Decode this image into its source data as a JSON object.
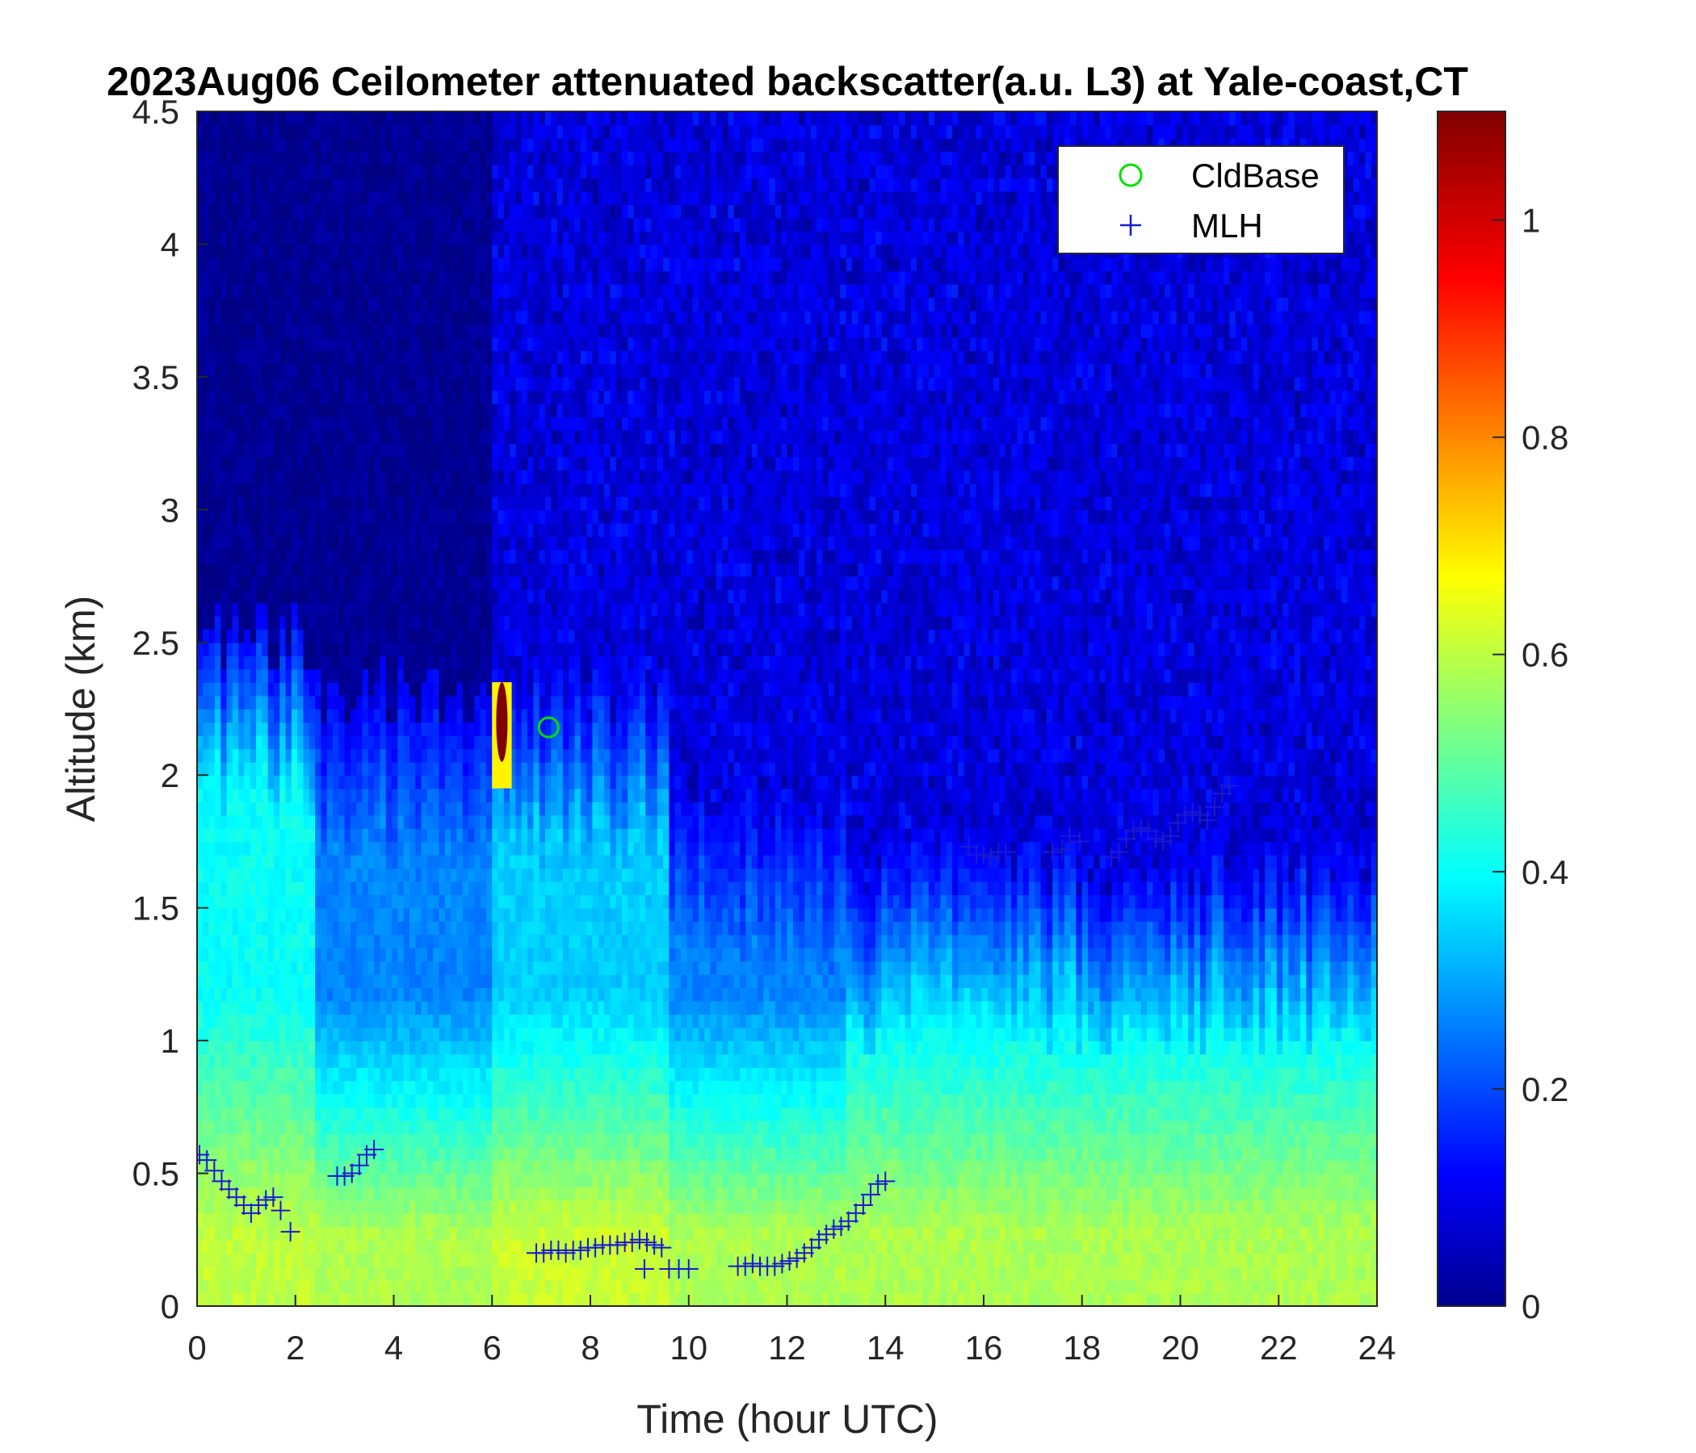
{
  "chart_data": {
    "type": "heatmap",
    "title": "2023Aug06 Ceilometer attenuated backscatter(a.u. L3) at Yale-coast,CT",
    "xlabel": "Time (hour UTC)",
    "ylabel": "Altitude (km)",
    "xlim": [
      0,
      24
    ],
    "ylim": [
      0,
      4.5
    ],
    "x_ticks": [
      "0",
      "2",
      "4",
      "6",
      "8",
      "10",
      "12",
      "14",
      "16",
      "18",
      "20",
      "22",
      "24"
    ],
    "y_ticks": [
      "0",
      "0.5",
      "1",
      "1.5",
      "2",
      "2.5",
      "3",
      "3.5",
      "4",
      "4.5"
    ],
    "colorbar": {
      "colormap": "jet",
      "clim": [
        0,
        1.1
      ],
      "ticks": [
        "0",
        "0.2",
        "0.4",
        "0.6",
        "0.8",
        "1"
      ]
    },
    "legend": {
      "position": "top-right",
      "entries": [
        "CldBase",
        "MLH"
      ]
    },
    "series": [
      {
        "name": "CldBase",
        "marker": "circle",
        "color": "#00e000",
        "points": [
          [
            7.15,
            2.18
          ]
        ]
      },
      {
        "name": "MLH",
        "marker": "plus",
        "color": "#1a1ad0",
        "points": [
          [
            0.05,
            0.57
          ],
          [
            0.2,
            0.55
          ],
          [
            0.35,
            0.51
          ],
          [
            0.5,
            0.47
          ],
          [
            0.65,
            0.44
          ],
          [
            0.8,
            0.41
          ],
          [
            0.95,
            0.38
          ],
          [
            1.1,
            0.35
          ],
          [
            1.25,
            0.38
          ],
          [
            1.4,
            0.4
          ],
          [
            1.55,
            0.41
          ],
          [
            1.7,
            0.36
          ],
          [
            1.9,
            0.28
          ],
          [
            2.85,
            0.49
          ],
          [
            3.0,
            0.49
          ],
          [
            3.15,
            0.5
          ],
          [
            3.3,
            0.53
          ],
          [
            3.45,
            0.57
          ],
          [
            3.6,
            0.59
          ],
          [
            6.9,
            0.2
          ],
          [
            7.05,
            0.2
          ],
          [
            7.2,
            0.21
          ],
          [
            7.35,
            0.21
          ],
          [
            7.5,
            0.2
          ],
          [
            7.65,
            0.21
          ],
          [
            7.8,
            0.21
          ],
          [
            7.95,
            0.22
          ],
          [
            8.1,
            0.22
          ],
          [
            8.25,
            0.23
          ],
          [
            8.4,
            0.23
          ],
          [
            8.55,
            0.23
          ],
          [
            8.7,
            0.24
          ],
          [
            8.85,
            0.24
          ],
          [
            9.0,
            0.25
          ],
          [
            9.15,
            0.24
          ],
          [
            9.3,
            0.23
          ],
          [
            9.45,
            0.22
          ],
          [
            9.1,
            0.14
          ],
          [
            9.6,
            0.14
          ],
          [
            9.8,
            0.14
          ],
          [
            10.0,
            0.14
          ],
          [
            11.0,
            0.15
          ],
          [
            11.15,
            0.15
          ],
          [
            11.3,
            0.16
          ],
          [
            11.45,
            0.15
          ],
          [
            11.6,
            0.15
          ],
          [
            11.75,
            0.15
          ],
          [
            11.9,
            0.16
          ],
          [
            12.05,
            0.17
          ],
          [
            12.2,
            0.18
          ],
          [
            12.35,
            0.2
          ],
          [
            12.5,
            0.22
          ],
          [
            12.65,
            0.25
          ],
          [
            12.8,
            0.27
          ],
          [
            12.95,
            0.29
          ],
          [
            13.1,
            0.3
          ],
          [
            13.25,
            0.32
          ],
          [
            13.4,
            0.35
          ],
          [
            13.55,
            0.38
          ],
          [
            13.7,
            0.42
          ],
          [
            13.85,
            0.46
          ],
          [
            14.0,
            0.47
          ],
          [
            15.7,
            1.73
          ],
          [
            15.85,
            1.7
          ],
          [
            16.0,
            1.7
          ],
          [
            16.15,
            1.69
          ],
          [
            16.3,
            1.71
          ],
          [
            16.45,
            1.71
          ],
          [
            17.4,
            1.71
          ],
          [
            17.6,
            1.72
          ],
          [
            17.75,
            1.77
          ],
          [
            17.95,
            1.75
          ],
          [
            18.6,
            1.69
          ],
          [
            18.75,
            1.71
          ],
          [
            18.9,
            1.76
          ],
          [
            19.05,
            1.79
          ],
          [
            19.2,
            1.8
          ],
          [
            19.35,
            1.79
          ],
          [
            19.5,
            1.76
          ],
          [
            19.65,
            1.75
          ],
          [
            19.8,
            1.77
          ],
          [
            19.95,
            1.82
          ],
          [
            20.1,
            1.85
          ],
          [
            20.25,
            1.86
          ],
          [
            20.4,
            1.85
          ],
          [
            20.55,
            1.83
          ],
          [
            20.7,
            1.88
          ],
          [
            20.85,
            1.93
          ],
          [
            21.0,
            1.96
          ]
        ]
      }
    ],
    "heatmap_summary": {
      "cloud_feature": {
        "time": 6.2,
        "alt_low": 2.05,
        "alt_high": 2.35,
        "peak": 1.1
      }
    }
  }
}
